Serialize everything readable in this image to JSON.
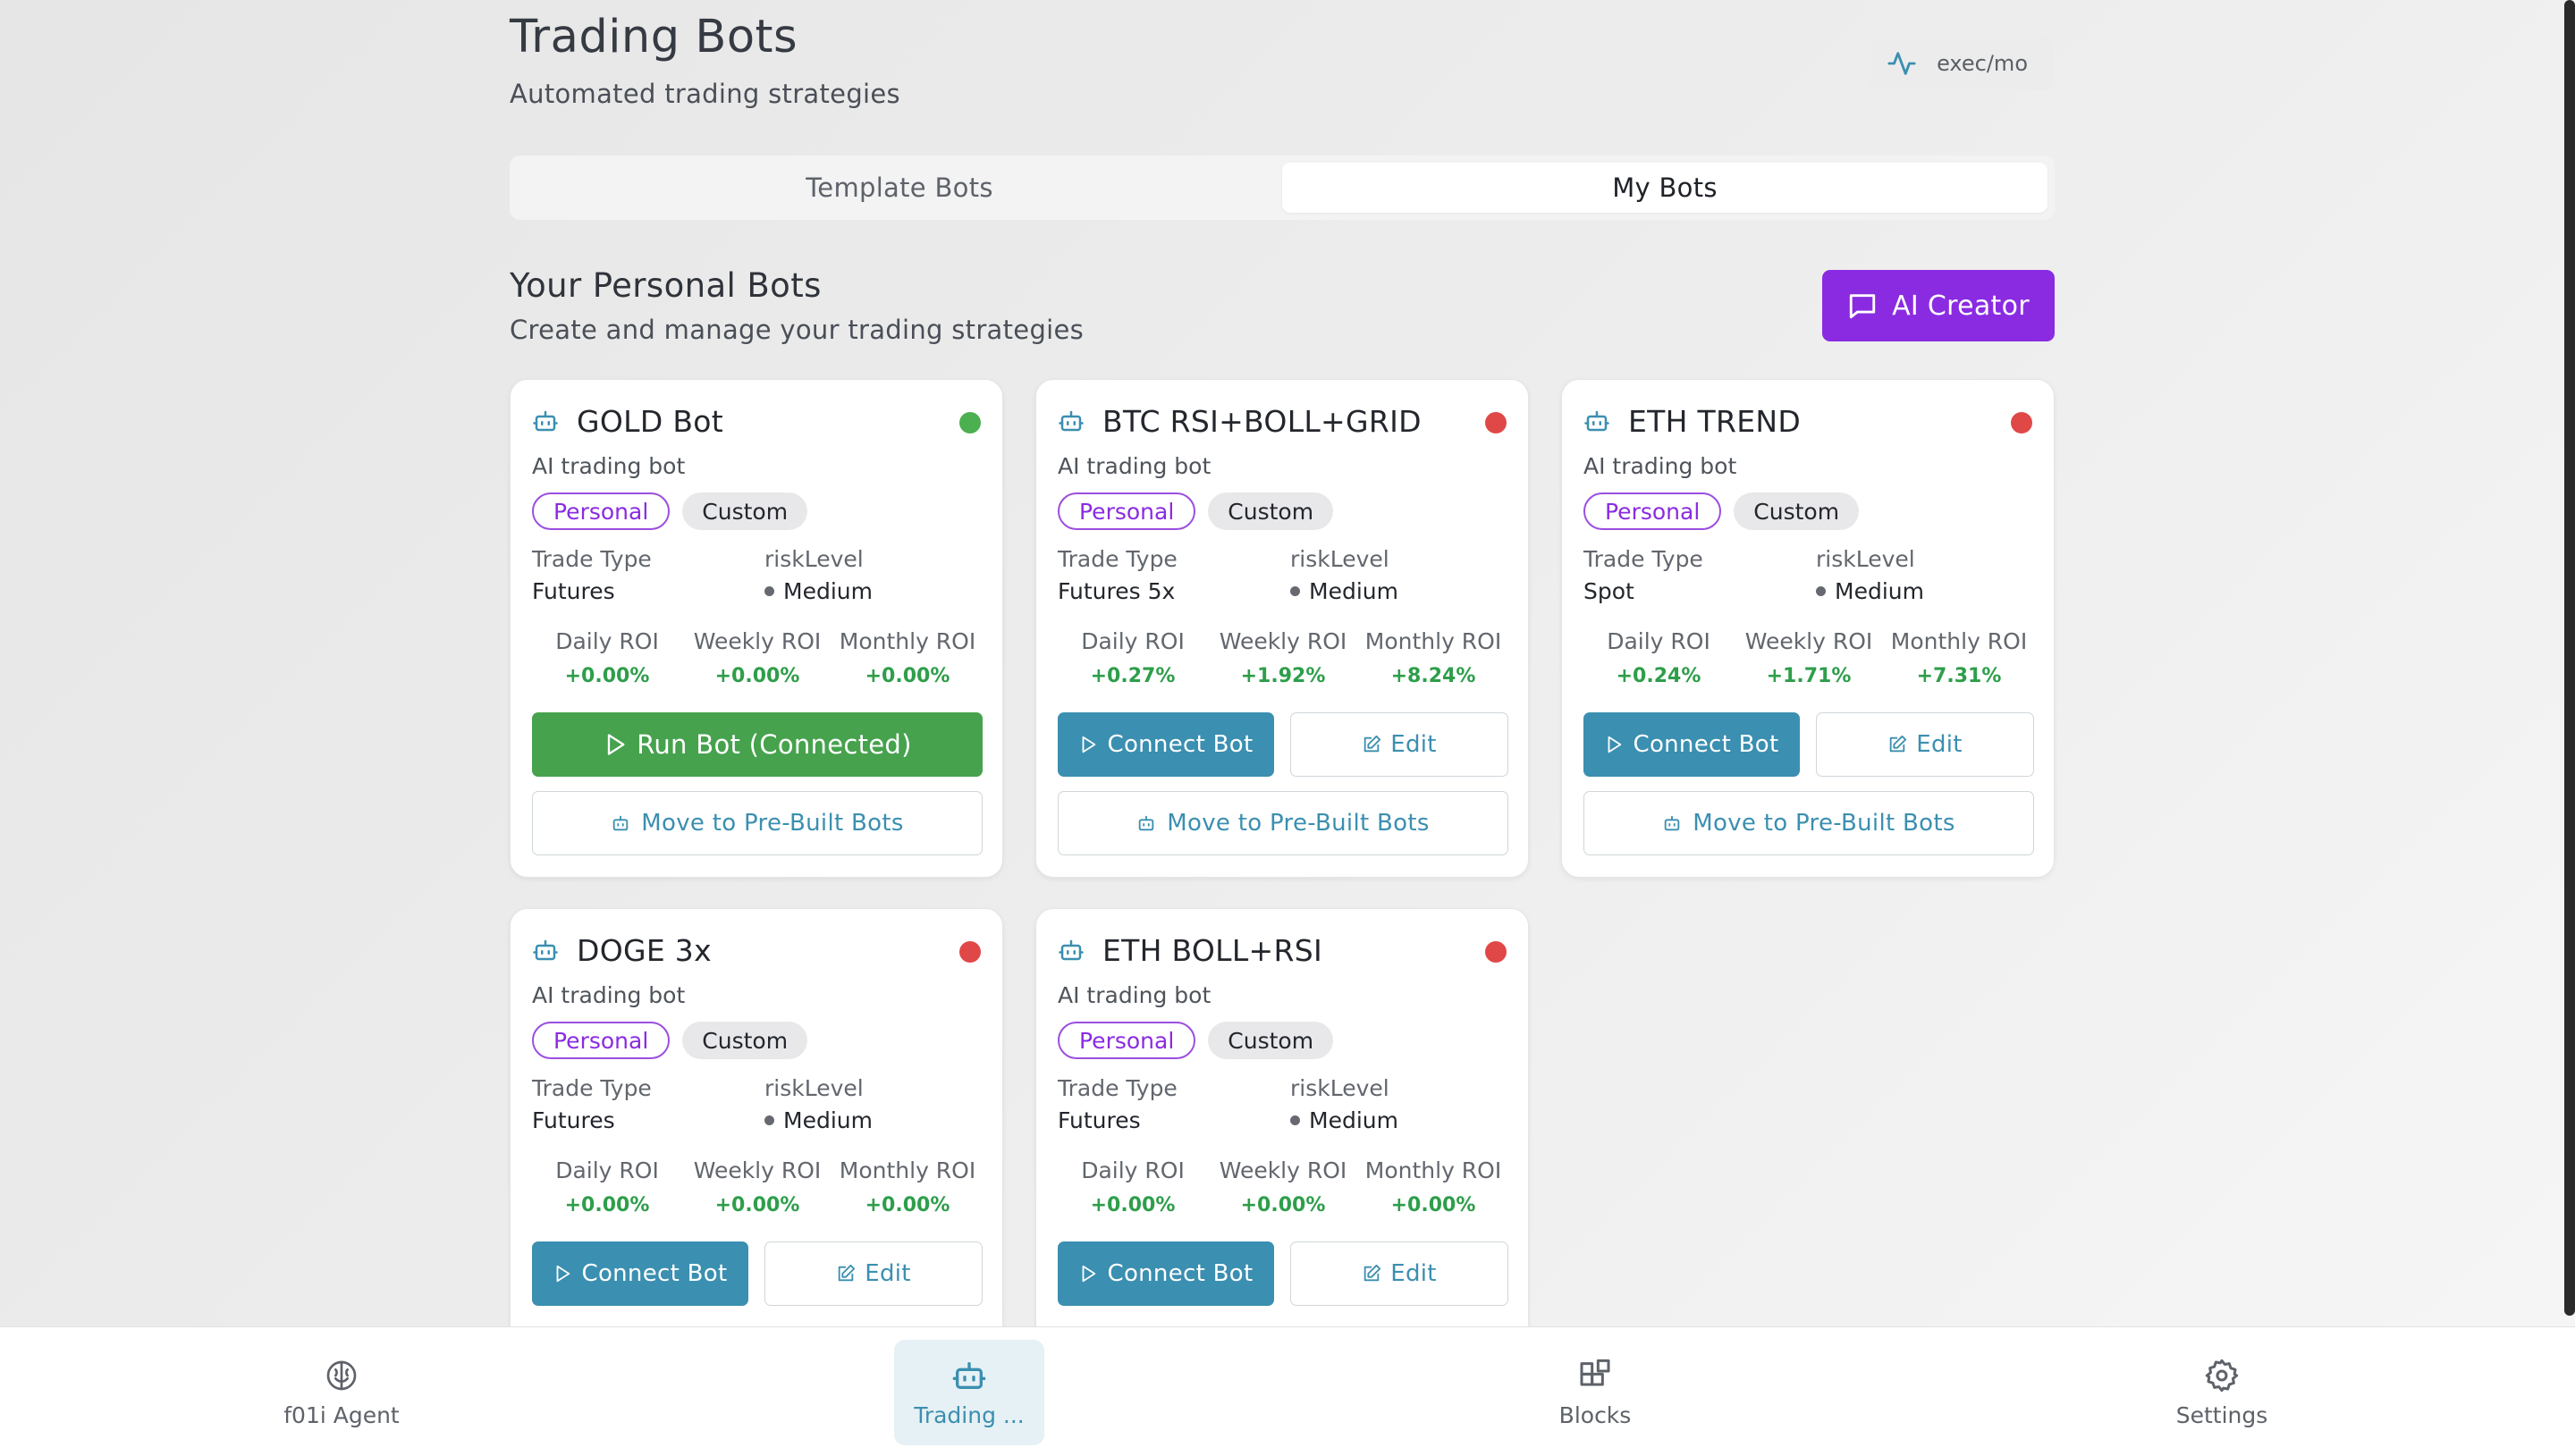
{
  "header": {
    "title": "Trading Bots",
    "subtitle": "Automated trading strategies",
    "exec_badge": "exec/mo"
  },
  "tabs": [
    {
      "label": "Template Bots",
      "active": false
    },
    {
      "label": "My Bots",
      "active": true
    }
  ],
  "section": {
    "title": "Your Personal Bots",
    "subtitle": "Create and manage your trading strategies",
    "ai_creator_label": "AI Creator"
  },
  "labels": {
    "trade_type": "Trade Type",
    "risk_level": "riskLevel",
    "daily_roi": "Daily ROI",
    "weekly_roi": "Weekly ROI",
    "monthly_roi": "Monthly ROI",
    "tag_personal": "Personal",
    "tag_custom": "Custom",
    "connect": "Connect Bot",
    "edit": "Edit",
    "run_connected": "Run Bot (Connected)",
    "move": "Move to Pre-Built Bots"
  },
  "bots": [
    {
      "name": "GOLD Bot",
      "description": "AI trading bot",
      "status": "active",
      "status_color": "#4caf50",
      "trade_type": "Futures",
      "risk_level": "Medium",
      "daily_roi": "+0.00%",
      "weekly_roi": "+0.00%",
      "monthly_roi": "+0.00%"
    },
    {
      "name": "BTC RSI+BOLL+GRID",
      "description": "AI trading bot",
      "status": "inactive",
      "status_color": "#e04848",
      "trade_type": "Futures 5x",
      "risk_level": "Medium",
      "daily_roi": "+0.27%",
      "weekly_roi": "+1.92%",
      "monthly_roi": "+8.24%"
    },
    {
      "name": "ETH TREND",
      "description": "AI trading bot",
      "status": "inactive",
      "status_color": "#e04848",
      "trade_type": "Spot",
      "risk_level": "Medium",
      "daily_roi": "+0.24%",
      "weekly_roi": "+1.71%",
      "monthly_roi": "+7.31%"
    },
    {
      "name": "DOGE 3x",
      "description": "AI trading bot",
      "status": "inactive",
      "status_color": "#e04848",
      "trade_type": "Futures",
      "risk_level": "Medium",
      "daily_roi": "+0.00%",
      "weekly_roi": "+0.00%",
      "monthly_roi": "+0.00%"
    },
    {
      "name": "ETH BOLL+RSI",
      "description": "AI trading bot",
      "status": "inactive",
      "status_color": "#e04848",
      "trade_type": "Futures",
      "risk_level": "Medium",
      "daily_roi": "+0.00%",
      "weekly_roi": "+0.00%",
      "monthly_roi": "+0.00%"
    }
  ],
  "bottom_nav": [
    {
      "label": "f01i Agent",
      "icon": "brain-icon",
      "active": false
    },
    {
      "label": "Trading ...",
      "icon": "bot-icon",
      "active": true
    },
    {
      "label": "Blocks",
      "icon": "blocks-icon",
      "active": false
    },
    {
      "label": "Settings",
      "icon": "gear-icon",
      "active": false
    }
  ],
  "colors": {
    "accent_purple": "#8a2be2",
    "accent_teal": "#3b8fb0",
    "run_green": "#46a24d",
    "roi_green": "#2e9e4a"
  }
}
